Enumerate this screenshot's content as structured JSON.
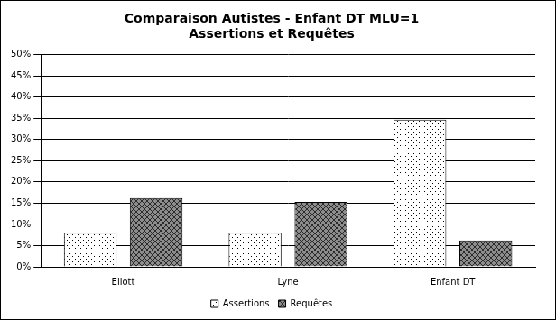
{
  "chart_data": {
    "type": "bar",
    "title": "Comparaison Autistes - Enfant DT MLU=1",
    "subtitle": "Assertions et Requêtes",
    "categories": [
      "Eliott",
      "Lyne",
      "Enfant DT"
    ],
    "series": [
      {
        "name": "Assertions",
        "color": "#ffffff",
        "values": [
          8,
          8,
          34.7
        ]
      },
      {
        "name": "Requêtes",
        "color": "#8c8c8c",
        "values": [
          16.2,
          15.3,
          6.2
        ]
      }
    ],
    "ylim": [
      0,
      50
    ],
    "yticks": [
      {
        "value": 0,
        "label": "0%"
      },
      {
        "value": 5,
        "label": "5%"
      },
      {
        "value": 10,
        "label": "10%"
      },
      {
        "value": 15,
        "label": "15%"
      },
      {
        "value": 20,
        "label": "20%"
      },
      {
        "value": 25,
        "label": "25%"
      },
      {
        "value": 30,
        "label": "30%"
      },
      {
        "value": 35,
        "label": "35%"
      },
      {
        "value": 40,
        "label": "40%"
      },
      {
        "value": 45,
        "label": "45%"
      },
      {
        "value": 50,
        "label": "50%"
      }
    ],
    "grid": true,
    "legend": "bottom"
  }
}
